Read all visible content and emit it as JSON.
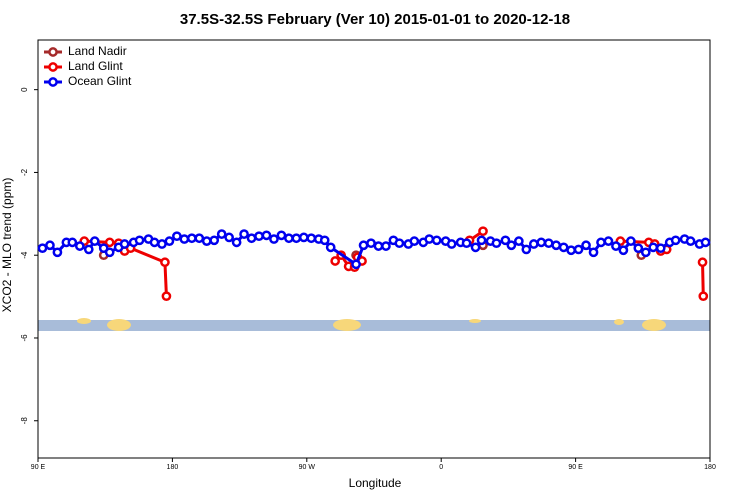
{
  "chart_data": {
    "type": "line",
    "title": "37.5S-32.5S February (Ver 10)   2015-01-01 to 2020-12-18",
    "xlabel": "Longitude",
    "ylabel": "XCO2 - MLO trend (ppm)",
    "xlim": [
      90,
      540
    ],
    "ylim": [
      -8.9,
      1.2
    ],
    "xticks": [
      {
        "value": 90,
        "label": "90 E"
      },
      {
        "value": 180,
        "label": "180"
      },
      {
        "value": 270,
        "label": "90 W"
      },
      {
        "value": 360,
        "label": "0"
      },
      {
        "value": 450,
        "label": "90 E"
      },
      {
        "value": 540,
        "label": "180"
      }
    ],
    "yticks": [
      0,
      -2,
      -4,
      -6,
      -8
    ],
    "legend": "top-left",
    "series": [
      {
        "name": "Land Nadir",
        "color": "#a52a2a",
        "x": [
          134,
          null,
          303,
          null,
          388,
          null,
          494
        ],
        "values": [
          -4.0,
          null,
          -4.0,
          null,
          -3.76,
          null,
          -4.0
        ]
      },
      {
        "name": "Land Glint",
        "color": "#ee0000",
        "x": [
          121,
          138,
          144,
          148,
          152,
          175,
          176,
          null,
          289,
          293,
          298,
          302,
          304,
          307,
          null,
          379,
          388,
          null,
          480,
          499,
          503,
          507,
          511,
          null,
          535,
          535.5
        ],
        "values": [
          -3.66,
          -3.69,
          -3.71,
          -3.9,
          -3.83,
          -4.17,
          -4.99,
          null,
          -4.14,
          -4.0,
          -4.27,
          -4.29,
          -4.05,
          -4.14,
          null,
          -3.64,
          -3.42,
          null,
          -3.66,
          -3.69,
          -3.73,
          -3.9,
          -3.86,
          null,
          -4.17,
          -4.99
        ]
      },
      {
        "name": "Ocean Glint",
        "color": "#0000ee",
        "x": [
          93,
          98,
          103,
          109,
          113,
          118,
          124,
          128,
          134,
          138,
          144,
          148,
          154,
          158,
          164,
          168,
          173,
          178,
          183,
          188,
          193,
          198,
          203,
          208,
          213,
          218,
          223,
          228,
          233,
          238,
          243,
          248,
          253,
          258,
          263,
          268,
          273,
          278,
          282,
          286,
          303,
          308,
          313,
          318,
          323,
          328,
          332,
          338,
          342,
          348,
          352,
          357,
          363,
          367,
          373,
          377,
          383,
          387,
          393,
          397,
          403,
          407,
          412,
          417,
          422,
          427,
          432,
          437,
          442,
          447,
          452,
          457,
          462,
          467,
          472,
          477,
          482,
          487,
          492,
          497,
          502,
          507,
          513,
          517,
          523,
          527,
          533,
          537
        ],
        "values": [
          -3.83,
          -3.76,
          -3.93,
          -3.69,
          -3.69,
          -3.78,
          -3.86,
          -3.66,
          -3.83,
          -3.93,
          -3.81,
          -3.73,
          -3.69,
          -3.64,
          -3.61,
          -3.69,
          -3.73,
          -3.66,
          -3.54,
          -3.61,
          -3.59,
          -3.59,
          -3.66,
          -3.64,
          -3.49,
          -3.57,
          -3.69,
          -3.49,
          -3.59,
          -3.54,
          -3.52,
          -3.61,
          -3.52,
          -3.59,
          -3.59,
          -3.57,
          -3.59,
          -3.61,
          -3.64,
          -3.81,
          -4.22,
          -3.76,
          -3.71,
          -3.78,
          -3.78,
          -3.64,
          -3.71,
          -3.73,
          -3.66,
          -3.69,
          -3.61,
          -3.64,
          -3.66,
          -3.73,
          -3.69,
          -3.71,
          -3.81,
          -3.64,
          -3.66,
          -3.71,
          -3.64,
          -3.76,
          -3.66,
          -3.86,
          -3.73,
          -3.69,
          -3.71,
          -3.76,
          -3.81,
          -3.88,
          -3.86,
          -3.76,
          -3.93,
          -3.69,
          -3.66,
          -3.78,
          -3.88,
          -3.66,
          -3.83,
          -3.93,
          -3.81,
          -3.83,
          -3.69,
          -3.64,
          -3.61,
          -3.66,
          -3.73,
          -3.69
        ]
      }
    ]
  }
}
